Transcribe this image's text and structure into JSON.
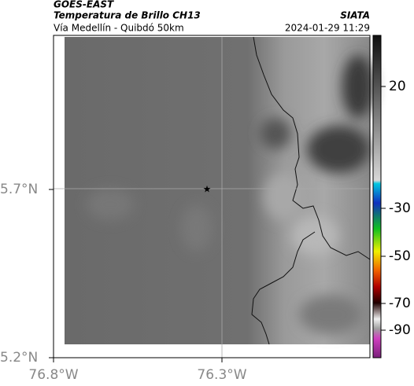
{
  "header": {
    "satellite": "GOES-EAST",
    "product": "Temperatura de Brillo CH13",
    "source": "SIATA",
    "region": "Vía Medellín - Quibdó 50km",
    "datetime": "2024-01-29 11:29"
  },
  "map": {
    "lat_labels": [
      "5.7°N",
      "5.2°N"
    ],
    "lon_labels": [
      "76.8°W",
      "76.3°W"
    ]
  },
  "colorbar": {
    "tick_labels": [
      "20",
      "-30",
      "-50",
      "-70",
      "-90"
    ]
  }
}
